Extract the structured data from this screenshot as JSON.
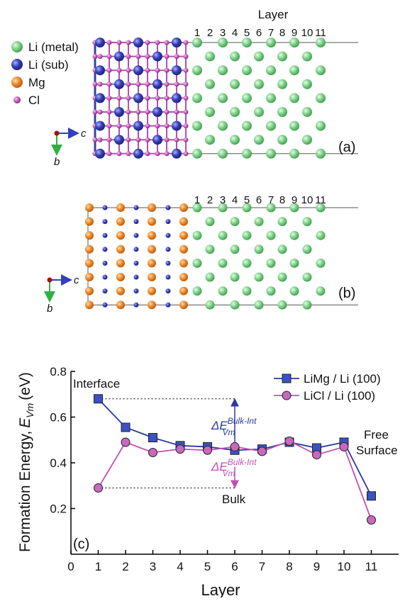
{
  "structure": {
    "legend": [
      "Li (metal)",
      "Li (sub)",
      "Mg",
      "Cl"
    ],
    "layer_title": "Layer",
    "layers": [
      1,
      2,
      3,
      4,
      5,
      6,
      7,
      8,
      9,
      10,
      11
    ],
    "panel_a": "(a)",
    "panel_b": "(b)",
    "axis_c": "c",
    "axis_b": "b"
  },
  "chart_data": {
    "type": "line",
    "x": [
      1,
      2,
      3,
      4,
      5,
      6,
      7,
      8,
      9,
      10,
      11
    ],
    "series": [
      {
        "name": "LiMg / Li (100)",
        "color": "#2b3a9e",
        "marker_color": "#3b52c4",
        "marker": "square",
        "values": [
          0.68,
          0.555,
          0.51,
          0.475,
          0.47,
          0.455,
          0.46,
          0.49,
          0.465,
          0.49,
          0.255
        ]
      },
      {
        "name": "LiCl / Li (100)",
        "color": "#c050b4",
        "marker_color": "#c868bf",
        "marker": "circle",
        "values": [
          0.29,
          0.49,
          0.445,
          0.46,
          0.455,
          0.47,
          0.45,
          0.495,
          0.435,
          0.47,
          0.15
        ]
      }
    ],
    "xlim": [
      0,
      12
    ],
    "ylim": [
      0,
      0.8
    ],
    "xticks": [
      0,
      1,
      2,
      3,
      4,
      5,
      6,
      7,
      8,
      9,
      10,
      11
    ],
    "yticks": [
      0.2,
      0.4,
      0.6,
      0.8
    ],
    "xlabel": "Layer",
    "ylabel": "Formation Energy,",
    "ylabel_var": "E",
    "ylabel_sub": "Vm",
    "ylabel_unit": "(eV)",
    "annotations": {
      "interface": "Interface",
      "bulk": "Bulk",
      "free": "Free",
      "surface": "Surface",
      "delta": "ΔE",
      "delta_sup": "Bulk-Int",
      "delta_sub": "Vm",
      "panel": "(c)"
    },
    "legend": "top-right"
  }
}
